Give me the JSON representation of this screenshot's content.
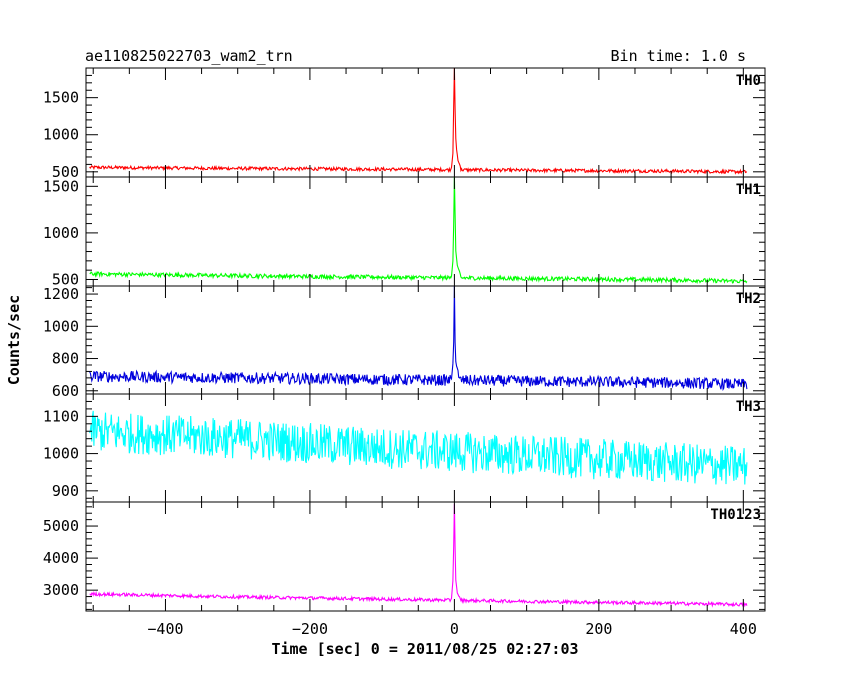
{
  "header": {
    "title": "ae110825022703_wam2_trn",
    "bin_time": "Bin time: 1.0 s"
  },
  "chart_data": {
    "type": "line",
    "title": "ae110825022703_wam2_trn",
    "subtitle": "Bin time: 1.0 s",
    "xlabel": "Time [sec] 0 = 2011/08/25 02:27:03",
    "ylabel": "Counts/sec",
    "xlim": [
      -510,
      430
    ],
    "x_ticks": [
      -400,
      -200,
      0,
      200,
      400
    ],
    "x_tick_labels": [
      "−400",
      "−200",
      "0",
      "200",
      "400"
    ],
    "x_range": [
      -505,
      405
    ],
    "grid": false,
    "panels": [
      {
        "name": "TH0",
        "color": "#ff0000",
        "ylim": [
          430,
          1900
        ],
        "y_ticks": [
          500,
          1000,
          1500
        ],
        "y_tick_labels": [
          "500",
          "1000",
          "1500"
        ],
        "baseline": [
          [
            -505,
            560
          ],
          [
            -300,
            545
          ],
          [
            -100,
            535
          ],
          [
            100,
            520
          ],
          [
            300,
            510
          ],
          [
            405,
            500
          ]
        ],
        "noise": 22,
        "burst": [
          [
            -4,
            560
          ],
          [
            -2,
            750
          ],
          [
            -1,
            1400
          ],
          [
            0,
            1900
          ],
          [
            1,
            1350
          ],
          [
            2,
            950
          ],
          [
            3,
            800
          ],
          [
            5,
            650
          ],
          [
            8,
            580
          ]
        ]
      },
      {
        "name": "TH1",
        "color": "#00ff00",
        "ylim": [
          430,
          1600
        ],
        "y_ticks": [
          500,
          1000,
          1500
        ],
        "y_tick_labels": [
          "500",
          "1000",
          "1500"
        ],
        "baseline": [
          [
            -505,
            560
          ],
          [
            -300,
            540
          ],
          [
            -100,
            525
          ],
          [
            100,
            510
          ],
          [
            300,
            495
          ],
          [
            405,
            480
          ]
        ],
        "noise": 22,
        "burst": [
          [
            -4,
            540
          ],
          [
            -2,
            700
          ],
          [
            -1,
            1100
          ],
          [
            0,
            1600
          ],
          [
            1,
            1200
          ],
          [
            2,
            800
          ],
          [
            4,
            650
          ],
          [
            8,
            560
          ]
        ]
      },
      {
        "name": "TH2",
        "color": "#0000dd",
        "ylim": [
          580,
          1250
        ],
        "y_ticks": [
          600,
          800,
          1000,
          1200
        ],
        "y_tick_labels": [
          "600",
          "800",
          "1000",
          "1200"
        ],
        "baseline": [
          [
            -505,
            690
          ],
          [
            -300,
            680
          ],
          [
            -100,
            670
          ],
          [
            100,
            660
          ],
          [
            300,
            650
          ],
          [
            405,
            640
          ]
        ],
        "noise": 35,
        "burst": [
          [
            -4,
            680
          ],
          [
            -2,
            760
          ],
          [
            -1,
            900
          ],
          [
            0,
            1250
          ],
          [
            1,
            900
          ],
          [
            2,
            780
          ],
          [
            5,
            720
          ]
        ]
      },
      {
        "name": "TH3",
        "color": "#00ffff",
        "ylim": [
          870,
          1160
        ],
        "y_ticks": [
          900,
          1000,
          1100
        ],
        "y_tick_labels": [
          "900",
          "1000",
          "1100"
        ],
        "baseline": [
          [
            -505,
            1060
          ],
          [
            -300,
            1040
          ],
          [
            -100,
            1015
          ],
          [
            100,
            995
          ],
          [
            300,
            975
          ],
          [
            405,
            965
          ]
        ],
        "noise": 55,
        "burst": []
      },
      {
        "name": "TH0123",
        "color": "#ff00ff",
        "ylim": [
          2350,
          5750
        ],
        "y_ticks": [
          3000,
          4000,
          5000
        ],
        "y_tick_labels": [
          "3000",
          "4000",
          "5000"
        ],
        "baseline": [
          [
            -505,
            2880
          ],
          [
            -300,
            2790
          ],
          [
            -100,
            2720
          ],
          [
            100,
            2650
          ],
          [
            300,
            2590
          ],
          [
            405,
            2550
          ]
        ],
        "noise": 50,
        "burst": [
          [
            -4,
            2750
          ],
          [
            -2,
            3300
          ],
          [
            -1,
            4400
          ],
          [
            0,
            5700
          ],
          [
            1,
            4300
          ],
          [
            2,
            3300
          ],
          [
            4,
            2900
          ],
          [
            8,
            2750
          ]
        ]
      }
    ]
  }
}
